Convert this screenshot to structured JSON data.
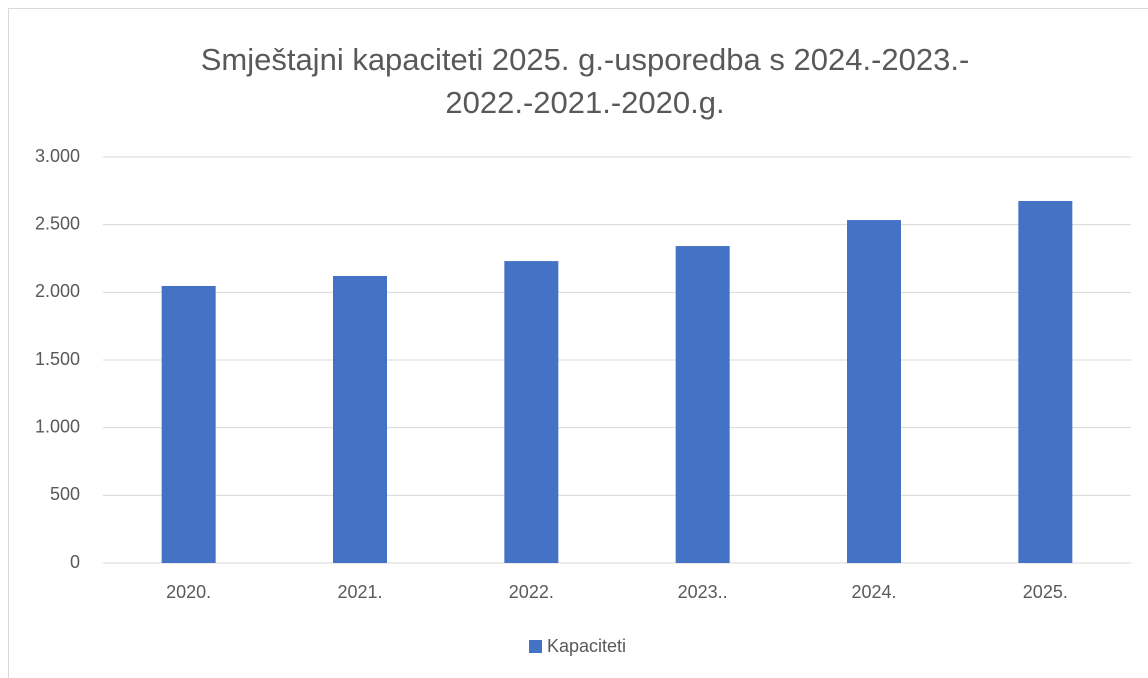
{
  "chart_data": {
    "type": "bar",
    "title": [
      "Smještajni kapaciteti 2025. g.-usporedba s 2024.-2023.-",
      "2022.-2021.-2020.g."
    ],
    "categories": [
      "2020.",
      "2021.",
      "2022.",
      "2023..",
      "2024.",
      "2025."
    ],
    "series": [
      {
        "name": "Kapaciteti",
        "color": "#4472c4",
        "values": [
          2047,
          2121,
          2231,
          2342,
          2534,
          2675
        ]
      }
    ],
    "ylim": [
      0,
      3000
    ],
    "yticks": [
      0,
      500,
      {
        "value": 1000,
        "label": "1.000"
      },
      {
        "value": 1500,
        "label": "1.500"
      },
      {
        "value": 2000,
        "label": "2.000"
      },
      {
        "value": 2500,
        "label": "2.500"
      },
      {
        "value": 3000,
        "label": "3.000"
      }
    ],
    "grid": true,
    "legend": "bottom"
  }
}
